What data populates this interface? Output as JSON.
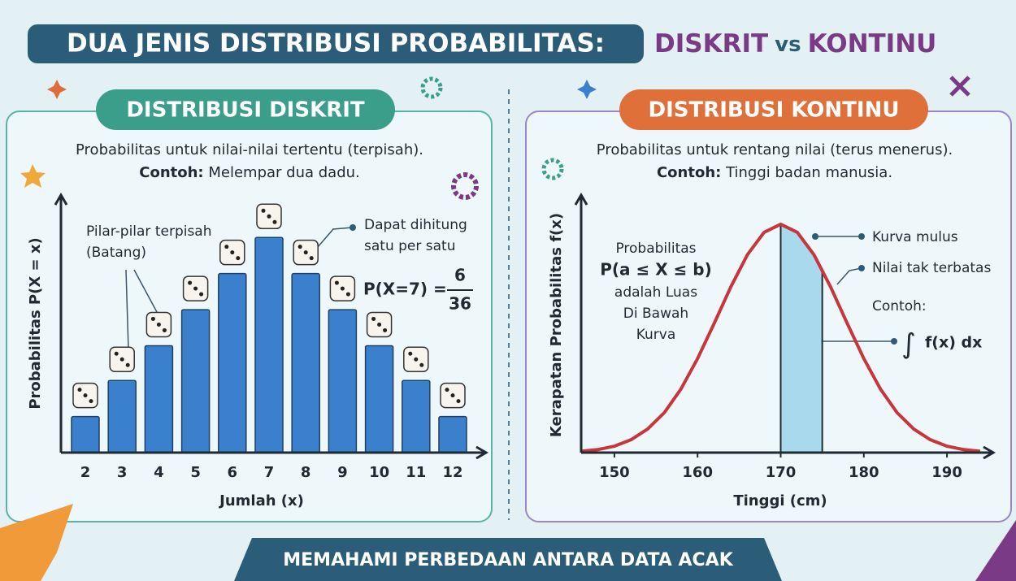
{
  "title": {
    "main": "DUA JENIS DISTRIBUSI PROBABILITAS:",
    "left": "DISKRIT",
    "joiner": "vs",
    "right": "KONTINU"
  },
  "footer": "MEMAHAMI PERBEDAAN ANTARA DATA ACAK",
  "chart_data": [
    {
      "type": "bar",
      "heading": "DISTRIBUSI DISKRIT",
      "description": "Probabilitas untuk nilai-nilai tertentu (terpisah).",
      "example_label": "Contoh:",
      "example": "Melempar dua dadu.",
      "categories": [
        "2",
        "3",
        "4",
        "5",
        "6",
        "7",
        "8",
        "9",
        "10",
        "11",
        "12"
      ],
      "values": [
        0.028,
        0.056,
        0.083,
        0.111,
        0.139,
        0.167,
        0.139,
        0.111,
        0.083,
        0.056,
        0.028
      ],
      "color": "#3a80cc",
      "ylim": [
        0,
        0.2
      ],
      "x_label": "Jumlah (x)",
      "y_label": "Probabilitas P(X = x)",
      "annotations": {
        "bars": [
          "Pilar-pilar terpisah",
          "(Batang)"
        ],
        "countable": [
          "Dapat dihitung",
          "satu per satu"
        ],
        "formula": "P(X=7) =",
        "numerator": "6",
        "denominator": "36"
      }
    },
    {
      "type": "line",
      "heading": "DISTRIBUSI KONTINU",
      "description": "Probabilitas untuk rentang nilai (terus menerus).",
      "example_label": "Contoh:",
      "example": "Tinggi badan manusia.",
      "x": [
        146,
        148,
        150,
        152,
        154,
        156,
        158,
        160,
        162,
        164,
        166,
        168,
        170,
        172,
        174,
        176,
        178,
        180,
        182,
        184,
        186,
        188,
        190,
        192,
        194
      ],
      "values": [
        0.0003,
        0.0007,
        0.0015,
        0.003,
        0.0055,
        0.0093,
        0.0148,
        0.0219,
        0.0301,
        0.0386,
        0.0461,
        0.0513,
        0.0532,
        0.0513,
        0.0461,
        0.0386,
        0.0301,
        0.0219,
        0.0148,
        0.0093,
        0.0055,
        0.003,
        0.0015,
        0.0007,
        0.0003
      ],
      "color": "#c8363d",
      "shade": [
        170,
        175
      ],
      "shade_color": "#a9d9ec",
      "xlim": [
        146,
        194
      ],
      "ylim": [
        0,
        0.06
      ],
      "xticks": [
        150,
        160,
        170,
        180,
        190
      ],
      "x_label": "Tinggi (cm)",
      "y_label": "Kerapatan Probabilitas f(x)",
      "annotations": {
        "area": [
          "Probabilitas",
          "P(a ≤ X ≤ b)",
          "adalah Luas",
          "Di Bawah",
          "Kurva"
        ],
        "smooth": "Kurva mulus",
        "infinite": "Nilai tak terbatas",
        "example_label": "Contoh:",
        "integral_sign": "∫",
        "integrand": "f(x) dx"
      }
    }
  ]
}
